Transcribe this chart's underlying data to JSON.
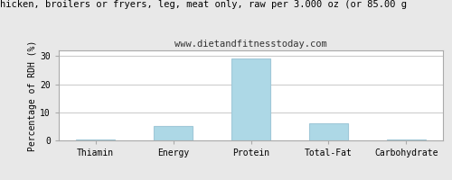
{
  "title": "hicken, broilers or fryers, leg, meat only, raw per 3.000 oz (or 85.00 g",
  "subtitle": "www.dietandfitnesstoday.com",
  "categories": [
    "Thiamin",
    "Energy",
    "Protein",
    "Total-Fat",
    "Carbohydrate"
  ],
  "values": [
    0.3,
    5.2,
    29.2,
    6.2,
    0.3
  ],
  "bar_color": "#add8e6",
  "bar_edge_color": "#a0c8d8",
  "ylabel": "Percentage of RDH (%)",
  "ylim": [
    0,
    32
  ],
  "yticks": [
    0,
    10,
    20,
    30
  ],
  "bg_color": "#e8e8e8",
  "plot_bg_color": "#ffffff",
  "title_fontsize": 7.5,
  "subtitle_fontsize": 7.5,
  "ylabel_fontsize": 7,
  "tick_fontsize": 7,
  "grid_color": "#cccccc",
  "border_color": "#aaaaaa"
}
